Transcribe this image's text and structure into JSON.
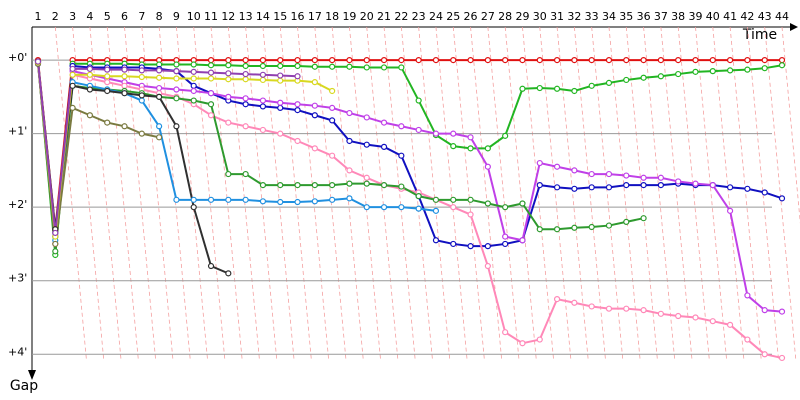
{
  "chart_data": {
    "type": "line",
    "x_label": "Time",
    "y_label": "Gap",
    "categories": [
      "1",
      "2",
      "3",
      "4",
      "5",
      "6",
      "7",
      "8",
      "9",
      "10",
      "11",
      "12",
      "13",
      "14",
      "15",
      "16",
      "17",
      "18",
      "19",
      "20",
      "21",
      "22",
      "23",
      "24",
      "25",
      "26",
      "27",
      "28",
      "29",
      "30",
      "31",
      "32",
      "33",
      "34",
      "35",
      "36",
      "37",
      "38",
      "39",
      "40",
      "41",
      "42",
      "43",
      "44"
    ],
    "ylim": [
      -0.45,
      4.35
    ],
    "y_reversed": true,
    "grid": true,
    "yticks": [
      {
        "value": 0,
        "label": "+0'"
      },
      {
        "value": 1,
        "label": "+1'"
      },
      {
        "value": 2,
        "label": "+2'"
      },
      {
        "value": 3,
        "label": "+3'"
      },
      {
        "value": 4,
        "label": "+4'"
      }
    ],
    "series": [
      {
        "color": "#e01010",
        "values": [
          0,
          2.3,
          0,
          0,
          0,
          0,
          0,
          0,
          0,
          0,
          0,
          0,
          0,
          0,
          0,
          0,
          0,
          0,
          0,
          0,
          0,
          0,
          0,
          0,
          0,
          0,
          0,
          0,
          0,
          0,
          0,
          0,
          0,
          0,
          0,
          0,
          0,
          0,
          0,
          0,
          0,
          0,
          0,
          0
        ]
      },
      {
        "color": "#22b522",
        "values": [
          0.02,
          2.65,
          0.05,
          0.05,
          0.05,
          0.05,
          0.06,
          0.06,
          0.06,
          0.06,
          0.07,
          0.07,
          0.08,
          0.08,
          0.08,
          0.08,
          0.09,
          0.09,
          0.09,
          0.1,
          0.1,
          0.1,
          0.55,
          1.02,
          1.17,
          1.2,
          1.2,
          1.03,
          0.39,
          0.38,
          0.39,
          0.42,
          0.35,
          0.31,
          0.27,
          0.24,
          0.22,
          0.19,
          0.16,
          0.15,
          0.14,
          0.13,
          0.11,
          0.07
        ]
      },
      {
        "color": "#1010c0",
        "values": [
          0.05,
          2.4,
          0.08,
          0.1,
          0.1,
          0.1,
          0.1,
          0.12,
          0.15,
          0.35,
          0.45,
          0.55,
          0.6,
          0.63,
          0.65,
          0.68,
          0.75,
          0.82,
          1.1,
          1.15,
          1.18,
          1.3,
          1.85,
          2.45,
          2.5,
          2.53,
          2.53,
          2.5,
          2.45,
          1.7,
          1.73,
          1.75,
          1.73,
          1.73,
          1.7,
          1.7,
          1.7,
          1.68,
          1.7,
          1.7,
          1.73,
          1.75,
          1.8,
          1.88
        ]
      },
      {
        "color": "#c040e8",
        "values": [
          0.03,
          2.35,
          0.15,
          0.2,
          0.25,
          0.3,
          0.35,
          0.38,
          0.4,
          0.42,
          0.45,
          0.5,
          0.52,
          0.55,
          0.58,
          0.6,
          0.62,
          0.65,
          0.72,
          0.78,
          0.85,
          0.9,
          0.95,
          1.0,
          1.0,
          1.05,
          1.45,
          2.4,
          2.45,
          1.4,
          1.45,
          1.5,
          1.55,
          1.55,
          1.57,
          1.6,
          1.6,
          1.65,
          1.68,
          1.7,
          2.05,
          3.2,
          3.4,
          3.42
        ]
      },
      {
        "color": "#ff88b8",
        "values": [
          0.04,
          2.5,
          0.2,
          0.25,
          0.3,
          0.35,
          0.4,
          0.45,
          0.5,
          0.6,
          0.75,
          0.85,
          0.9,
          0.95,
          1.0,
          1.1,
          1.2,
          1.3,
          1.5,
          1.6,
          1.7,
          1.75,
          1.8,
          1.9,
          2.0,
          2.1,
          2.8,
          3.7,
          3.85,
          3.8,
          3.25,
          3.3,
          3.35,
          3.38,
          3.38,
          3.4,
          3.45,
          3.48,
          3.5,
          3.55,
          3.6,
          3.8,
          4.0,
          4.05
        ]
      },
      {
        "color": "#2e9a2e",
        "values": [
          0.02,
          2.6,
          0.35,
          0.38,
          0.4,
          0.42,
          0.45,
          0.5,
          0.52,
          0.55,
          0.6,
          1.55,
          1.55,
          1.7,
          1.7,
          1.7,
          1.7,
          1.7,
          1.68,
          1.68,
          1.7,
          1.72,
          1.85,
          1.9,
          1.9,
          1.9,
          1.95,
          2.0,
          1.95,
          2.3,
          2.3,
          2.28,
          2.27,
          2.25,
          2.2,
          2.15,
          null,
          null,
          null,
          null,
          null,
          null,
          null,
          null
        ]
      },
      {
        "color": "#2090e0",
        "values": [
          0.03,
          2.45,
          0.3,
          0.35,
          0.4,
          0.45,
          0.55,
          0.9,
          1.9,
          1.9,
          1.9,
          1.9,
          1.9,
          1.92,
          1.93,
          1.93,
          1.92,
          1.9,
          1.88,
          2.0,
          2.0,
          2.0,
          2.02,
          2.05,
          null,
          null,
          null,
          null,
          null,
          null,
          null,
          null,
          null,
          null,
          null,
          null,
          null,
          null,
          null,
          null,
          null,
          null,
          null,
          null
        ]
      },
      {
        "color": "#303030",
        "values": [
          0.02,
          2.3,
          0.35,
          0.4,
          0.42,
          0.45,
          0.48,
          0.5,
          0.9,
          2.0,
          2.8,
          2.9,
          null,
          null,
          null,
          null,
          null,
          null,
          null,
          null,
          null,
          null,
          null,
          null,
          null,
          null,
          null,
          null,
          null,
          null,
          null,
          null,
          null,
          null,
          null,
          null,
          null,
          null,
          null,
          null,
          null,
          null,
          null,
          null
        ]
      },
      {
        "color": "#7a7a40",
        "values": [
          0.05,
          2.5,
          0.65,
          0.75,
          0.85,
          0.9,
          1.0,
          1.05,
          null,
          null,
          null,
          null,
          null,
          null,
          null,
          null,
          null,
          null,
          null,
          null,
          null,
          null,
          null,
          null,
          null,
          null,
          null,
          null,
          null,
          null,
          null,
          null,
          null,
          null,
          null,
          null,
          null,
          null,
          null,
          null,
          null,
          null,
          null,
          null
        ]
      },
      {
        "color": "#d8d820",
        "values": [
          0.03,
          2.4,
          0.2,
          0.2,
          0.22,
          0.22,
          0.23,
          0.24,
          0.25,
          0.25,
          0.25,
          0.26,
          0.26,
          0.27,
          0.28,
          0.28,
          0.3,
          0.42,
          null,
          null,
          null,
          null,
          null,
          null,
          null,
          null,
          null,
          null,
          null,
          null,
          null,
          null,
          null,
          null,
          null,
          null,
          null,
          null,
          null,
          null,
          null,
          null,
          null,
          null
        ]
      },
      {
        "color": "#9040b0",
        "values": [
          0.02,
          2.35,
          0.12,
          0.12,
          0.13,
          0.13,
          0.14,
          0.14,
          0.15,
          0.16,
          0.17,
          0.18,
          0.19,
          0.2,
          0.21,
          0.22,
          null,
          null,
          null,
          null,
          null,
          null,
          null,
          null,
          null,
          null,
          null,
          null,
          null,
          null,
          null,
          null,
          null,
          null,
          null,
          null,
          null,
          null,
          null,
          null,
          null,
          null,
          null,
          null
        ]
      }
    ]
  }
}
